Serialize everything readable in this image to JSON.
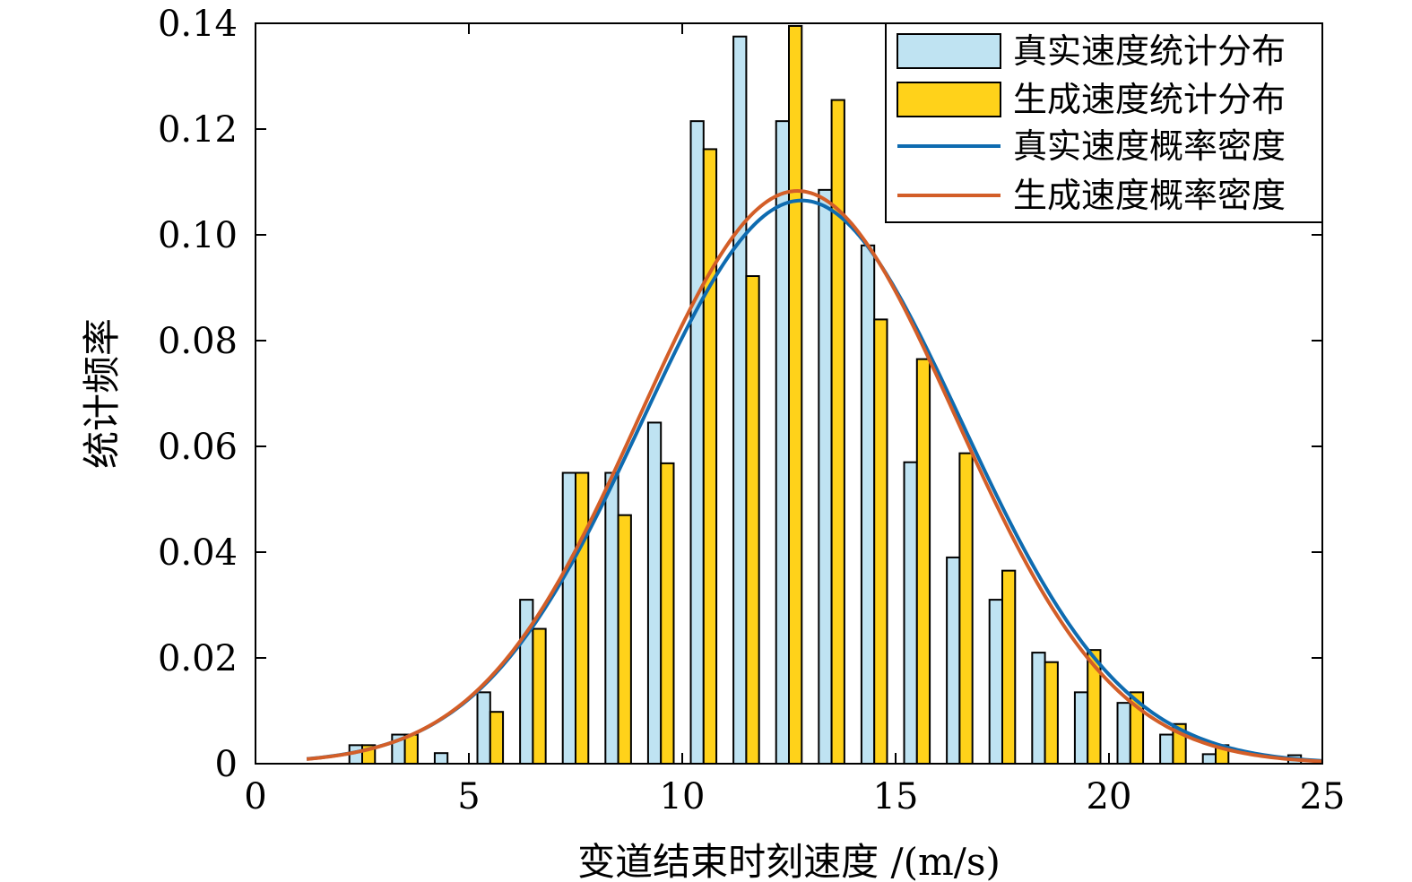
{
  "chart_data": {
    "type": "bar",
    "xlabel": "变道结束时刻速度 /(m/s)",
    "ylabel": "统计频率",
    "xlim": [
      0,
      25
    ],
    "ylim": [
      0,
      0.14
    ],
    "xticks": [
      0,
      5,
      10,
      15,
      20,
      25
    ],
    "xtick_labels": [
      "0",
      "5",
      "10",
      "15",
      "20",
      "25"
    ],
    "yticks": [
      0,
      0.02,
      0.04,
      0.06,
      0.08,
      0.1,
      0.12,
      0.14
    ],
    "ytick_labels": [
      "0",
      "0.02",
      "0.04",
      "0.06",
      "0.08",
      "0.10",
      "0.12",
      "0.14"
    ],
    "bin_centers": [
      2.5,
      3.5,
      4.5,
      5.5,
      6.5,
      7.5,
      8.5,
      9.5,
      10.5,
      11.5,
      12.5,
      13.5,
      14.5,
      15.5,
      16.5,
      17.5,
      18.5,
      19.5,
      20.5,
      21.5,
      22.5,
      23.5,
      24.5
    ],
    "bar_width": 0.3,
    "series": [
      {
        "name": "真实速度统计分布",
        "kind": "bar",
        "color": "#BFE3F2",
        "values": [
          0.0035,
          0.0055,
          0.002,
          0.0135,
          0.031,
          0.055,
          0.055,
          0.0645,
          0.1215,
          0.1375,
          0.1215,
          0.1085,
          0.098,
          0.057,
          0.039,
          0.031,
          0.021,
          0.0135,
          0.0115,
          0.0055,
          0.0018,
          0,
          0.0016
        ]
      },
      {
        "name": "生成速度统计分布",
        "kind": "bar",
        "color": "#FFD21A",
        "values": [
          0.0035,
          0.0055,
          0,
          0.0098,
          0.0255,
          0.055,
          0.047,
          0.0568,
          0.1162,
          0.0922,
          0.1395,
          0.1255,
          0.084,
          0.0765,
          0.0587,
          0.0365,
          0.0192,
          0.0215,
          0.0135,
          0.0075,
          0.0035,
          0,
          0
        ]
      },
      {
        "name": "真实速度概率密度",
        "kind": "line",
        "color": "#0E6BB0",
        "mean": 12.8,
        "sd": 3.75,
        "peak": 0.1065,
        "x_range": [
          1.2,
          25
        ]
      },
      {
        "name": "生成速度概率密度",
        "kind": "line",
        "color": "#D35E28",
        "mean": 12.7,
        "sd": 3.7,
        "peak": 0.1083,
        "x_range": [
          1.2,
          25
        ]
      }
    ],
    "legend_position": "top-right"
  }
}
